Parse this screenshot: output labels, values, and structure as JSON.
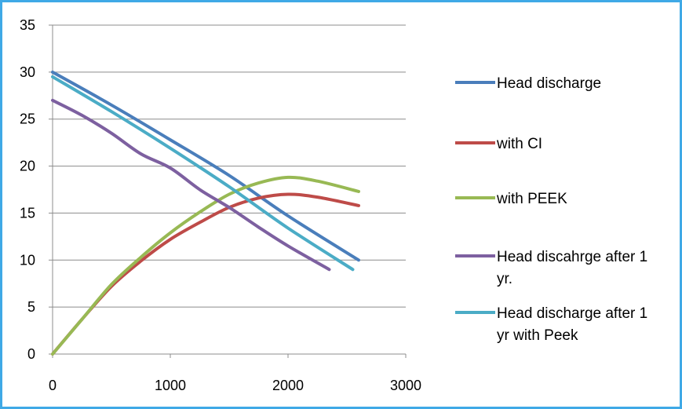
{
  "chart_data": {
    "type": "line",
    "title": "",
    "xlabel": "",
    "ylabel": "",
    "xlim": [
      0,
      3000
    ],
    "ylim": [
      0,
      35
    ],
    "x_ticks": [
      "0",
      "1000",
      "2000",
      "3000"
    ],
    "y_ticks": [
      "0",
      "5",
      "10",
      "15",
      "20",
      "25",
      "30",
      "35"
    ],
    "grid": "horizontal",
    "legend_position": "right",
    "series": [
      {
        "name": "Head discharge",
        "color": "#4a7ebb",
        "x": [
          0,
          500,
          1000,
          1500,
          2000,
          2600
        ],
        "y": [
          30,
          26.5,
          22.8,
          19,
          14.7,
          10
        ]
      },
      {
        "name": "with CI",
        "color": "#be4b48",
        "x": [
          0,
          250,
          500,
          750,
          1000,
          1250,
          1500,
          1750,
          2000,
          2250,
          2600
        ],
        "y": [
          0,
          3.7,
          7.2,
          9.9,
          12.2,
          14,
          15.6,
          16.6,
          17,
          16.7,
          15.8
        ]
      },
      {
        "name": "with PEEK",
        "color": "#98b954",
        "x": [
          0,
          250,
          500,
          750,
          1000,
          1250,
          1500,
          1750,
          2000,
          2250,
          2600
        ],
        "y": [
          0,
          3.7,
          7.4,
          10.3,
          12.9,
          15.1,
          17,
          18.2,
          18.8,
          18.4,
          17.3
        ]
      },
      {
        "name": "Head discahrge after 1 yr.",
        "color": "#7d60a0",
        "x": [
          0,
          250,
          500,
          750,
          1000,
          1250,
          1500,
          1750,
          2000,
          2350
        ],
        "y": [
          27,
          25.4,
          23.5,
          21.3,
          19.8,
          17.5,
          15.6,
          13.5,
          11.5,
          9
        ]
      },
      {
        "name": "Head discharge after 1 yr with Peek",
        "color": "#4bacc6",
        "x": [
          0,
          500,
          1000,
          1500,
          2000,
          2550
        ],
        "y": [
          29.5,
          25.8,
          21.9,
          17.8,
          13.4,
          9
        ]
      }
    ]
  },
  "legend": {
    "entries": [
      {
        "lines": [
          "Head discharge"
        ],
        "color": "#4a7ebb"
      },
      {
        "lines": [
          "with CI"
        ],
        "color": "#be4b48"
      },
      {
        "lines": [
          "with PEEK"
        ],
        "color": "#98b954"
      },
      {
        "lines": [
          "Head discahrge after 1",
          "yr."
        ],
        "color": "#7d60a0"
      },
      {
        "lines": [
          "Head discharge after 1",
          "yr with Peek"
        ],
        "color": "#4bacc6"
      }
    ]
  }
}
